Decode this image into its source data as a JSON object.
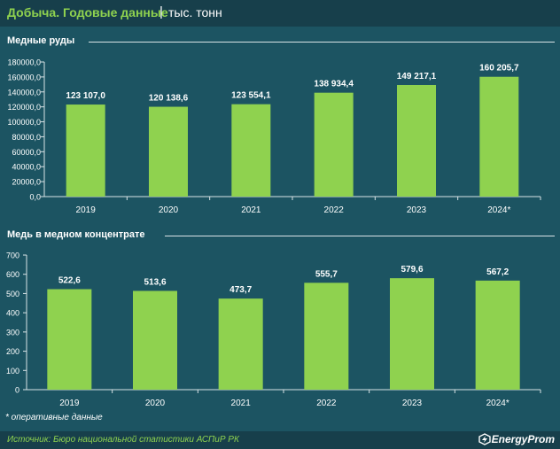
{
  "header": {
    "title": "Добыча. Годовые данные",
    "separator": "|",
    "unit": "тыс. тонн"
  },
  "colors": {
    "background": "#1c5462",
    "bar": "#8fd24f",
    "title_accent": "#8fd24f",
    "text": "#ffffff"
  },
  "chart_data": [
    {
      "type": "bar",
      "title": "Медные руды",
      "categories": [
        "2019",
        "2020",
        "2021",
        "2022",
        "2023",
        "2024*"
      ],
      "values": [
        123107.0,
        120138.6,
        123554.1,
        138934.4,
        149217.1,
        160205.7
      ],
      "value_labels": [
        "123 107,0",
        "120 138,6",
        "123 554,1",
        "138 934,4",
        "149 217,1",
        "160 205,7"
      ],
      "yticks": [
        "0,0",
        "20000,0",
        "40000,0",
        "60000,0",
        "80000,0",
        "100000,0",
        "120000,0",
        "140000,0",
        "160000,0",
        "180000,0"
      ],
      "ylim": [
        0,
        180000
      ],
      "grid": false
    },
    {
      "type": "bar",
      "title": "Медь в медном концентрате",
      "categories": [
        "2019",
        "2020",
        "2021",
        "2022",
        "2023",
        "2024*"
      ],
      "values": [
        522.6,
        513.6,
        473.7,
        555.7,
        579.6,
        567.2
      ],
      "value_labels": [
        "522,6",
        "513,6",
        "473,7",
        "555,7",
        "579,6",
        "567,2"
      ],
      "yticks": [
        "0",
        "100",
        "200",
        "300",
        "400",
        "500",
        "600",
        "700"
      ],
      "ylim": [
        0,
        700
      ],
      "grid": false
    }
  ],
  "footnote": "* оперативные данные",
  "footer": {
    "source": "Источник: Бюро национальной статистики АСПиР РК",
    "brand": "EnergyProm",
    "brand_icon": "energyprom-logo-icon"
  }
}
